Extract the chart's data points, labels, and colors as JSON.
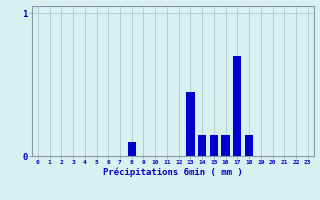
{
  "hours": [
    0,
    1,
    2,
    3,
    4,
    5,
    6,
    7,
    8,
    9,
    10,
    11,
    12,
    13,
    14,
    15,
    16,
    17,
    18,
    19,
    20,
    21,
    22,
    23
  ],
  "values": [
    0,
    0,
    0,
    0,
    0,
    0,
    0,
    0,
    0.1,
    0,
    0,
    0,
    0,
    0.45,
    0.15,
    0.15,
    0.15,
    0.7,
    0.15,
    0,
    0,
    0,
    0,
    0
  ],
  "bar_color": "#0000cc",
  "bg_color": "#d8f0f0",
  "grid_color": "#aacccc",
  "axis_color": "#8899aa",
  "xlabel": "Précipitations 6min ( mm )",
  "xlabel_color": "#0000cc",
  "ytick_labels": [
    "0",
    "1"
  ],
  "ytick_vals": [
    0,
    1.0
  ],
  "ylim": [
    0,
    1.05
  ],
  "xlim": [
    -0.5,
    23.5
  ],
  "tick_color": "#0000cc",
  "bar_width": 0.7
}
